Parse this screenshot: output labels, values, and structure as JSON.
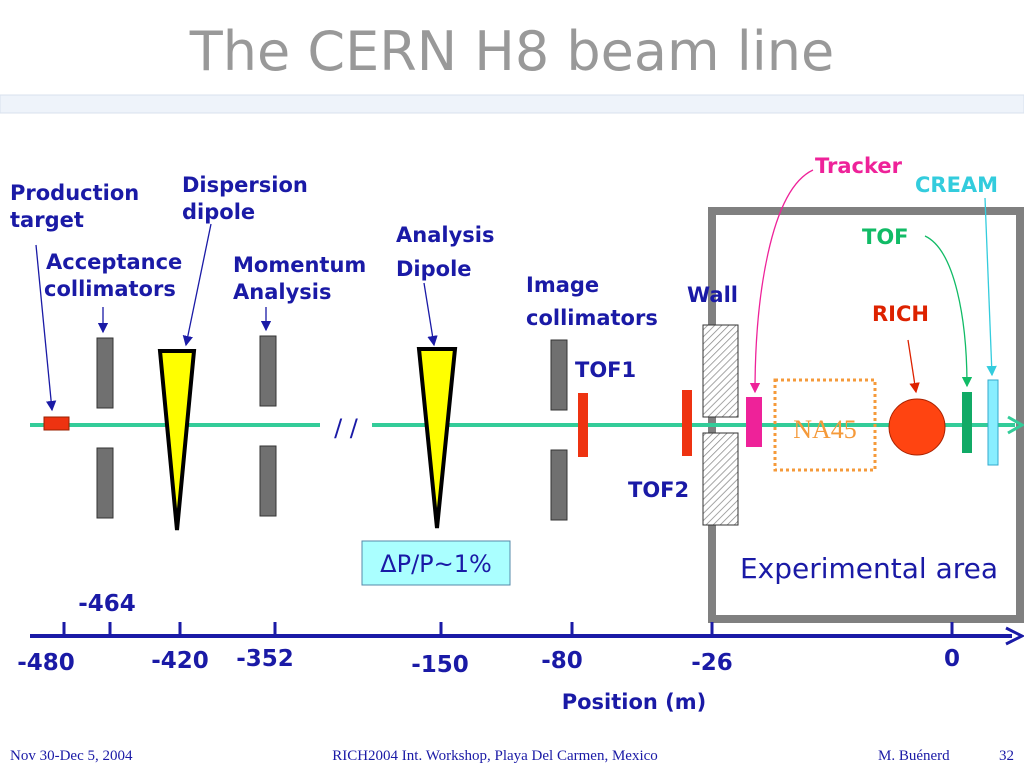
{
  "title": "The CERN H8 beam line",
  "components": {
    "production_target": [
      "Production",
      "target"
    ],
    "dispersion_dipole": [
      "Dispersion",
      "dipole"
    ],
    "acceptance_collimators": [
      "Acceptance",
      "collimators"
    ],
    "momentum_analysis": [
      "Momentum",
      "Analysis"
    ],
    "analysis_dipole": [
      "Analysis",
      "Dipole"
    ],
    "image_collimators": [
      "Image",
      "collimators"
    ],
    "wall": "Wall",
    "tof1": "TOF1",
    "tof2": "TOF2",
    "tracker": "Tracker",
    "cream": "CREAM",
    "tof": "TOF",
    "rich": "RICH",
    "na45": "NA45",
    "break_mark": "/ /",
    "momentum_spread": "ΔP/P~1%",
    "experimental_area": "Experimental area"
  },
  "axis": {
    "title": "Position (m)",
    "labels": [
      "-480",
      "-464",
      "-420",
      "-352",
      "-150",
      "-80",
      "-26",
      "0"
    ]
  },
  "footer": {
    "date": "Nov 30-Dec 5, 2004",
    "event": "RICH2004 Int. Workshop, Playa Del Carmen, Mexico",
    "author": "M. Buénerd",
    "page": "32"
  }
}
